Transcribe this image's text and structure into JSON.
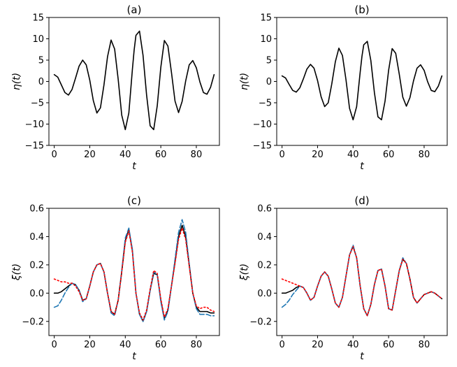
{
  "chart_data": [
    {
      "type": "line",
      "title": "(a)",
      "xlabel": "t",
      "ylabel": "η(t)",
      "xlim": [
        -3,
        93
      ],
      "ylim": [
        -15,
        15
      ],
      "xticks": [
        0,
        20,
        40,
        60,
        80
      ],
      "yticks": [
        -15,
        -10,
        -5,
        0,
        5,
        10,
        15
      ],
      "xtick_labels": [
        "0",
        "20",
        "40",
        "60",
        "80"
      ],
      "ytick_labels": [
        "−15",
        "−10",
        "−5",
        "0",
        "5",
        "10",
        "15"
      ],
      "grid": false,
      "series": [
        {
          "color": "#000000",
          "dash": "solid",
          "x": [
            0,
            2,
            4,
            6,
            8,
            10,
            12,
            14,
            16,
            18,
            20,
            22,
            24,
            26,
            28,
            30,
            32,
            34,
            36,
            38,
            40,
            42,
            44,
            45,
            46,
            48,
            50,
            52,
            54,
            56,
            58,
            60,
            62,
            64,
            66,
            68,
            70,
            72,
            74,
            76,
            78,
            80,
            82,
            84,
            86,
            88,
            90
          ],
          "y": [
            1.6,
            1.0,
            -0.8,
            -2.6,
            -3.2,
            -1.9,
            0.8,
            3.6,
            5.0,
            3.9,
            0.3,
            -4.5,
            -7.4,
            -6.2,
            -0.8,
            5.8,
            9.7,
            7.6,
            0.5,
            -7.9,
            -11.3,
            -7.4,
            2.8,
            7.4,
            10.8,
            11.8,
            6.1,
            -3.2,
            -10.4,
            -11.3,
            -5.7,
            3.3,
            9.6,
            8.3,
            2.1,
            -4.6,
            -7.3,
            -4.7,
            0.1,
            3.9,
            4.9,
            3.2,
            -0.1,
            -2.6,
            -3.0,
            -1.4,
            1.6
          ]
        }
      ]
    },
    {
      "type": "line",
      "title": "(b)",
      "xlabel": "t",
      "ylabel": "η(t)",
      "xlim": [
        -3,
        93
      ],
      "ylim": [
        -15,
        15
      ],
      "xticks": [
        0,
        20,
        40,
        60,
        80
      ],
      "yticks": [
        -15,
        -10,
        -5,
        0,
        5,
        10,
        15
      ],
      "xtick_labels": [
        "0",
        "20",
        "40",
        "60",
        "80"
      ],
      "ytick_labels": [
        "−15",
        "−10",
        "−5",
        "0",
        "5",
        "10",
        "15"
      ],
      "grid": false,
      "series": [
        {
          "color": "#000000",
          "dash": "solid",
          "x": [
            0,
            2,
            4,
            6,
            8,
            10,
            12,
            14,
            16,
            18,
            20,
            22,
            24,
            26,
            28,
            30,
            32,
            34,
            36,
            38,
            40,
            42,
            44,
            45,
            46,
            48,
            50,
            52,
            54,
            56,
            58,
            60,
            62,
            64,
            66,
            68,
            70,
            72,
            74,
            76,
            78,
            80,
            82,
            84,
            86,
            88,
            90
          ],
          "y": [
            1.3,
            0.8,
            -0.7,
            -2.1,
            -2.5,
            -1.5,
            0.6,
            2.9,
            4.0,
            3.1,
            0.2,
            -3.6,
            -5.9,
            -5.0,
            -0.6,
            4.6,
            7.8,
            6.1,
            0.4,
            -6.3,
            -9.0,
            -5.9,
            2.2,
            5.9,
            8.6,
            9.4,
            4.9,
            -2.6,
            -8.3,
            -9.0,
            -4.6,
            2.6,
            7.7,
            6.6,
            1.7,
            -3.7,
            -5.8,
            -3.8,
            0.1,
            3.1,
            3.9,
            2.6,
            -0.1,
            -2.1,
            -2.4,
            -1.1,
            1.3
          ]
        }
      ]
    },
    {
      "type": "line",
      "title": "(c)",
      "xlabel": "t",
      "ylabel": "ξ(t)",
      "xlim": [
        -3,
        93
      ],
      "ylim": [
        -0.3,
        0.6
      ],
      "xticks": [
        0,
        20,
        40,
        60,
        80
      ],
      "yticks": [
        -0.2,
        0.0,
        0.2,
        0.4,
        0.6
      ],
      "xtick_labels": [
        "0",
        "20",
        "40",
        "60",
        "80"
      ],
      "ytick_labels": [
        "−0.2",
        "0.0",
        "0.2",
        "0.4",
        "0.6"
      ],
      "grid": false,
      "series": [
        {
          "color": "#000000",
          "dash": "solid",
          "x": [
            0,
            2,
            4,
            6,
            8,
            10,
            12,
            14,
            16,
            18,
            20,
            22,
            24,
            26,
            28,
            30,
            32,
            34,
            36,
            38,
            40,
            42,
            44,
            46,
            48,
            50,
            52,
            54,
            56,
            58,
            60,
            62,
            64,
            66,
            68,
            70,
            72,
            74,
            76,
            78,
            80,
            82,
            84,
            86,
            88,
            90
          ],
          "y": [
            0.0,
            0.0,
            0.01,
            0.03,
            0.05,
            0.07,
            0.06,
            0.02,
            -0.05,
            -0.04,
            0.05,
            0.15,
            0.2,
            0.21,
            0.15,
            0.0,
            -0.13,
            -0.15,
            -0.05,
            0.15,
            0.37,
            0.45,
            0.3,
            0.0,
            -0.15,
            -0.2,
            -0.13,
            0.02,
            0.14,
            0.13,
            -0.05,
            -0.18,
            -0.12,
            0.05,
            0.22,
            0.4,
            0.48,
            0.4,
            0.2,
            0.0,
            -0.1,
            -0.13,
            -0.13,
            -0.13,
            -0.14,
            -0.14
          ]
        },
        {
          "color": "#1f77b4",
          "dash": "dashed",
          "x": [
            0,
            2,
            4,
            6,
            8,
            10,
            12,
            14,
            16,
            18,
            20,
            22,
            24,
            26,
            28,
            30,
            32,
            34,
            36,
            38,
            40,
            42,
            44,
            46,
            48,
            50,
            52,
            54,
            56,
            58,
            60,
            62,
            64,
            66,
            68,
            70,
            72,
            74,
            76,
            78,
            80,
            82,
            84,
            86,
            88,
            90
          ],
          "y": [
            -0.1,
            -0.09,
            -0.05,
            0.0,
            0.04,
            0.07,
            0.06,
            0.02,
            -0.06,
            -0.04,
            0.05,
            0.15,
            0.2,
            0.21,
            0.15,
            0.0,
            -0.14,
            -0.16,
            -0.05,
            0.16,
            0.39,
            0.46,
            0.31,
            0.0,
            -0.15,
            -0.2,
            -0.13,
            0.02,
            0.15,
            0.13,
            -0.06,
            -0.19,
            -0.13,
            0.05,
            0.24,
            0.43,
            0.52,
            0.43,
            0.21,
            0.0,
            -0.11,
            -0.15,
            -0.15,
            -0.15,
            -0.16,
            -0.16
          ]
        },
        {
          "color": "#ff0000",
          "dash": "dotted",
          "x": [
            0,
            2,
            4,
            6,
            8,
            10,
            12,
            14,
            16,
            18,
            20,
            22,
            24,
            26,
            28,
            30,
            32,
            34,
            36,
            38,
            40,
            42,
            44,
            46,
            48,
            50,
            52,
            54,
            56,
            58,
            60,
            62,
            64,
            66,
            68,
            70,
            72,
            74,
            76,
            78,
            80,
            82,
            84,
            86,
            88,
            90
          ],
          "y": [
            0.1,
            0.09,
            0.08,
            0.08,
            0.07,
            0.07,
            0.05,
            0.01,
            -0.05,
            -0.04,
            0.05,
            0.15,
            0.2,
            0.21,
            0.15,
            0.0,
            -0.13,
            -0.15,
            -0.05,
            0.15,
            0.36,
            0.44,
            0.29,
            0.0,
            -0.14,
            -0.19,
            -0.12,
            0.03,
            0.16,
            0.14,
            -0.04,
            -0.17,
            -0.11,
            0.05,
            0.21,
            0.38,
            0.46,
            0.38,
            0.19,
            0.0,
            -0.09,
            -0.11,
            -0.1,
            -0.1,
            -0.12,
            -0.13
          ]
        }
      ]
    },
    {
      "type": "line",
      "title": "(d)",
      "xlabel": "t",
      "ylabel": "ξ(t)",
      "xlim": [
        -3,
        93
      ],
      "ylim": [
        -0.3,
        0.6
      ],
      "xticks": [
        0,
        20,
        40,
        60,
        80
      ],
      "yticks": [
        -0.2,
        0.0,
        0.2,
        0.4,
        0.6
      ],
      "xtick_labels": [
        "0",
        "20",
        "40",
        "60",
        "80"
      ],
      "ytick_labels": [
        "−0.2",
        "0.0",
        "0.2",
        "0.4",
        "0.6"
      ],
      "grid": false,
      "series": [
        {
          "color": "#000000",
          "dash": "solid",
          "x": [
            0,
            2,
            4,
            6,
            8,
            10,
            12,
            14,
            16,
            18,
            20,
            22,
            24,
            26,
            28,
            30,
            32,
            34,
            36,
            38,
            40,
            42,
            44,
            46,
            48,
            50,
            52,
            54,
            56,
            58,
            60,
            62,
            64,
            66,
            68,
            70,
            72,
            74,
            76,
            78,
            80,
            82,
            84,
            86,
            88,
            90
          ],
          "y": [
            0.0,
            0.0,
            0.01,
            0.02,
            0.04,
            0.05,
            0.04,
            0.0,
            -0.05,
            -0.03,
            0.05,
            0.12,
            0.15,
            0.12,
            0.03,
            -0.07,
            -0.1,
            -0.03,
            0.12,
            0.27,
            0.33,
            0.25,
            0.05,
            -0.11,
            -0.16,
            -0.08,
            0.06,
            0.16,
            0.17,
            0.05,
            -0.11,
            -0.12,
            0.02,
            0.16,
            0.24,
            0.21,
            0.1,
            -0.03,
            -0.07,
            -0.04,
            -0.01,
            0.0,
            0.01,
            0.0,
            -0.02,
            -0.04
          ]
        },
        {
          "color": "#1f77b4",
          "dash": "dashed",
          "x": [
            0,
            2,
            4,
            6,
            8,
            10,
            12,
            14,
            16,
            18,
            20,
            22,
            24,
            26,
            28,
            30,
            32,
            34,
            36,
            38,
            40,
            42,
            44,
            46,
            48,
            50,
            52,
            54,
            56,
            58,
            60,
            62,
            64,
            66,
            68,
            70,
            72,
            74,
            76,
            78,
            80,
            82,
            84,
            86,
            88,
            90
          ],
          "y": [
            -0.1,
            -0.08,
            -0.05,
            -0.01,
            0.02,
            0.05,
            0.04,
            0.0,
            -0.05,
            -0.03,
            0.05,
            0.12,
            0.15,
            0.12,
            0.03,
            -0.07,
            -0.1,
            -0.03,
            0.12,
            0.27,
            0.34,
            0.25,
            0.05,
            -0.11,
            -0.16,
            -0.08,
            0.06,
            0.16,
            0.17,
            0.05,
            -0.11,
            -0.12,
            0.02,
            0.16,
            0.25,
            0.21,
            0.1,
            -0.03,
            -0.07,
            -0.04,
            -0.01,
            0.0,
            0.01,
            0.0,
            -0.02,
            -0.04
          ]
        },
        {
          "color": "#ff0000",
          "dash": "dotted",
          "x": [
            0,
            2,
            4,
            6,
            8,
            10,
            12,
            14,
            16,
            18,
            20,
            22,
            24,
            26,
            28,
            30,
            32,
            34,
            36,
            38,
            40,
            42,
            44,
            46,
            48,
            50,
            52,
            54,
            56,
            58,
            60,
            62,
            64,
            66,
            68,
            70,
            72,
            74,
            76,
            78,
            80,
            82,
            84,
            86,
            88,
            90
          ],
          "y": [
            0.1,
            0.09,
            0.08,
            0.07,
            0.06,
            0.05,
            0.04,
            0.0,
            -0.05,
            -0.03,
            0.05,
            0.12,
            0.15,
            0.12,
            0.03,
            -0.07,
            -0.1,
            -0.03,
            0.12,
            0.27,
            0.33,
            0.25,
            0.05,
            -0.11,
            -0.16,
            -0.08,
            0.06,
            0.16,
            0.17,
            0.05,
            -0.11,
            -0.12,
            0.02,
            0.16,
            0.24,
            0.21,
            0.1,
            -0.03,
            -0.07,
            -0.04,
            -0.01,
            0.0,
            0.01,
            0.0,
            -0.02,
            -0.04
          ]
        }
      ]
    }
  ]
}
